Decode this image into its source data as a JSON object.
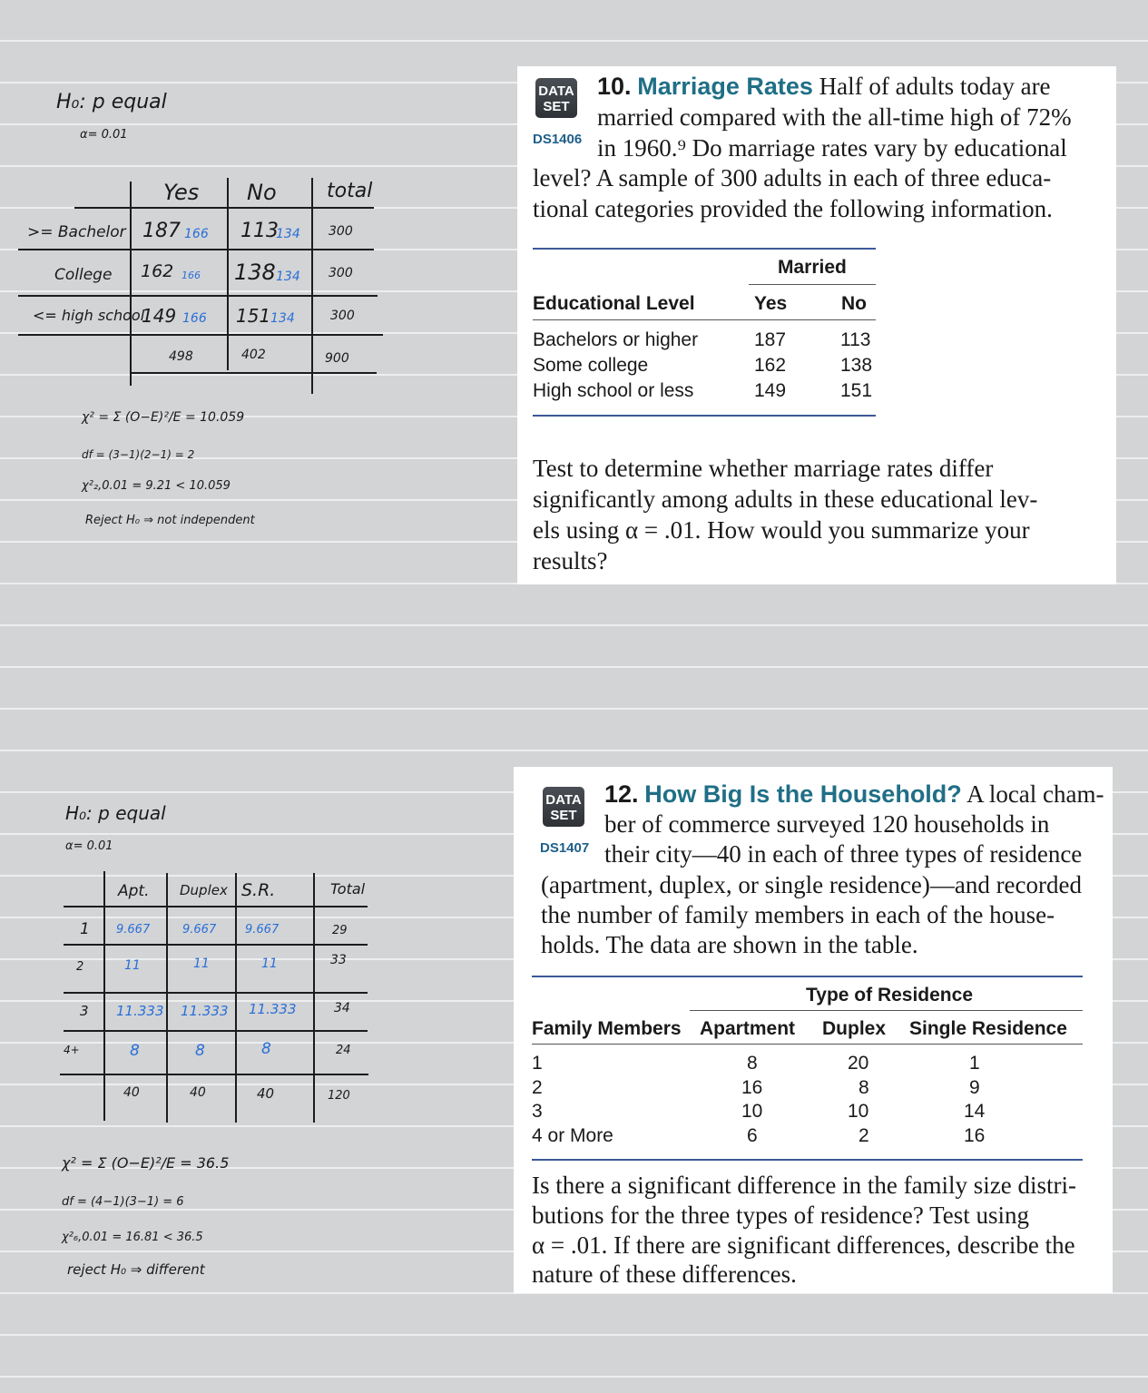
{
  "colors": {
    "teal_title": "#1f6f86",
    "ds_code": "#1e5f8a",
    "rule_blue": "#3b5998",
    "handwritten_blue": "#2a6fd6"
  },
  "notes1": {
    "h0": "H₀: p equal",
    "alpha": "α= 0.01",
    "col_headers": [
      "Yes",
      "No",
      "total"
    ],
    "rows": [
      {
        "label": ">= Bachelor",
        "obs1": "187",
        "exp1": "166",
        "obs2": "113",
        "exp2": "134",
        "total": "300"
      },
      {
        "label": "College",
        "obs1": "162",
        "exp1": "166",
        "obs2": "138",
        "exp2": "134",
        "total": "300"
      },
      {
        "label": "<= high school",
        "obs1": "149",
        "exp1": "166",
        "obs2": "151",
        "exp2": "134",
        "total": "300"
      }
    ],
    "col_totals": [
      "498",
      "402",
      "900"
    ],
    "chi_sq": "χ² = Σ (O−E)²/E = 10.059",
    "df": "df = (3−1)(2−1) = 2",
    "crit": "χ²₂,0.01 = 9.21 < 10.059",
    "conclusion": "Reject H₀ ⇒ not independent"
  },
  "problem10": {
    "badge": "DATA SET",
    "code": "DS1406",
    "number": "10.",
    "title": "Marriage Rates",
    "lines": [
      "Half of adults today are",
      "married compared with the all-time high of 72%",
      "in 1960.⁹ Do marriage rates vary by educational",
      "level? A sample of 300 adults in each of three educa-",
      "tional categories provided the following information."
    ],
    "table": {
      "group_header": "Married",
      "headers": [
        "Educational Level",
        "Yes",
        "No"
      ],
      "rows": [
        [
          "Bachelors or higher",
          "187",
          "113"
        ],
        [
          "Some college",
          "162",
          "138"
        ],
        [
          "High school or less",
          "149",
          "151"
        ]
      ]
    },
    "question": [
      "Test to determine whether marriage rates differ",
      "significantly among adults in these educational lev-",
      "els using α = .01. How would you summarize your",
      "results?"
    ]
  },
  "notes2": {
    "h0": "H₀: p equal",
    "alpha": "α= 0.01",
    "col_headers": [
      "Apt.",
      "Duplex",
      "S.R.",
      "Total"
    ],
    "rows": [
      {
        "label": "1",
        "c1": "9.667",
        "c2": "9.667",
        "c3": "9.667",
        "total": "29"
      },
      {
        "label": "2",
        "c1": "11",
        "c2": "11",
        "c3": "11",
        "total": "33"
      },
      {
        "label": "3",
        "c1": "11.333",
        "c2": "11.333",
        "c3": "11.333",
        "total": "34"
      },
      {
        "label": "4+",
        "c1": "8",
        "c2": "8",
        "c3": "8",
        "total": "24"
      }
    ],
    "col_totals": [
      "40",
      "40",
      "40",
      "120"
    ],
    "chi_sq": "χ² = Σ (O−E)²/E = 36.5",
    "df": "df = (4−1)(3−1) = 6",
    "crit": "χ²₆,0.01 = 16.81 < 36.5",
    "conclusion": "reject H₀ ⇒ different"
  },
  "problem12": {
    "badge": "DATA SET",
    "code": "DS1407",
    "number": "12.",
    "title": "How Big Is the Household?",
    "lines": [
      "A local cham-",
      "ber of commerce surveyed 120 households in",
      "their city—40 in each of three types of residence",
      "(apartment, duplex, or single residence)—and recorded",
      "the number of family members in each of the house-",
      "holds. The data are shown in the table."
    ],
    "table": {
      "group_header": "Type of Residence",
      "headers": [
        "Family Members",
        "Apartment",
        "Duplex",
        "Single Residence"
      ],
      "rows": [
        [
          "1",
          "8",
          "20",
          "1"
        ],
        [
          "2",
          "16",
          "8",
          "9"
        ],
        [
          "3",
          "10",
          "10",
          "14"
        ],
        [
          "4 or More",
          "6",
          "2",
          "16"
        ]
      ]
    },
    "question": [
      "Is there a significant difference in the family size distri-",
      "butions for the three types of residence? Test using",
      "α = .01. If there are significant differences, describe the",
      "nature of these differences."
    ]
  }
}
